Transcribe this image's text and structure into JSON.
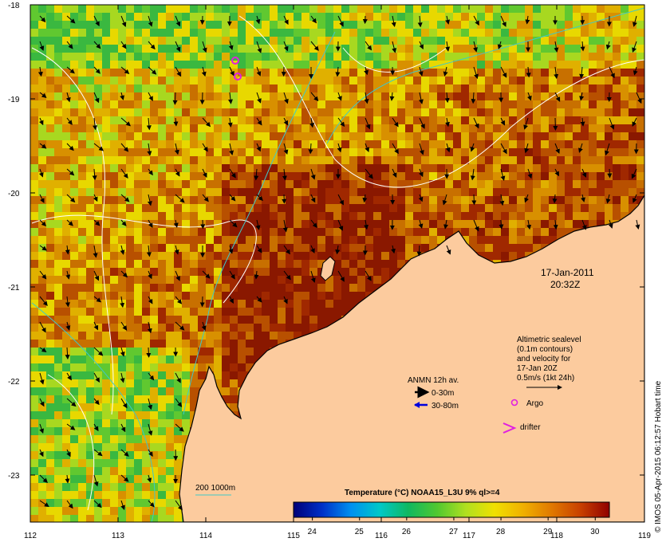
{
  "map": {
    "lon_ticks": [
      "112",
      "113",
      "114",
      "115",
      "116",
      "117",
      "118",
      "119"
    ],
    "lat_ticks": [
      "-18",
      "-19",
      "-20",
      "-21",
      "-22",
      "-23"
    ],
    "lon_range": [
      112,
      119
    ],
    "lat_range": [
      -23.5,
      -18
    ]
  },
  "timestamp": {
    "date": "17-Jan-2011",
    "time": "20:32Z"
  },
  "altimetry_legend": {
    "line1": "Altimetric sealevel",
    "line2": "(0.1m contours)",
    "line3": "and velocity for",
    "line4": "17-Jan 20Z",
    "line5": "0.5m/s (1kt 24h)"
  },
  "anmn_legend": {
    "title": "ANMN 12h av.",
    "item1": "0-30m",
    "item2": "30-80m",
    "item1_color": "#000000",
    "item2_color": "#0000dd"
  },
  "symbols": {
    "argo": "Argo",
    "drifter": "drifter",
    "argo_color": "#e020e0",
    "drifter_color": "#e020e0"
  },
  "bathymetry": {
    "label": "200  1000m",
    "color": "#40c8c8"
  },
  "colorbar": {
    "title": "Temperature (°C) NOAA15_L3U 9% ql>=4",
    "ticks": [
      "24",
      "25",
      "26",
      "27",
      "28",
      "29",
      "30"
    ],
    "range": [
      23.6,
      30.3
    ],
    "colors": [
      "#000078",
      "#0030c8",
      "#0090f0",
      "#00c8c8",
      "#10b860",
      "#50c830",
      "#b0e020",
      "#f0e000",
      "#f0b000",
      "#e07800",
      "#c84000",
      "#900000"
    ]
  },
  "credit": "© IMOS 05-Apr-2015 06:12:57 Hobart time",
  "palette": {
    "land": "#fccb9e",
    "ocean_warm": "#c87800",
    "ocean_hot": "#a02800",
    "ocean_cool": "#3ab840",
    "ocean_mid": "#e0b000"
  }
}
